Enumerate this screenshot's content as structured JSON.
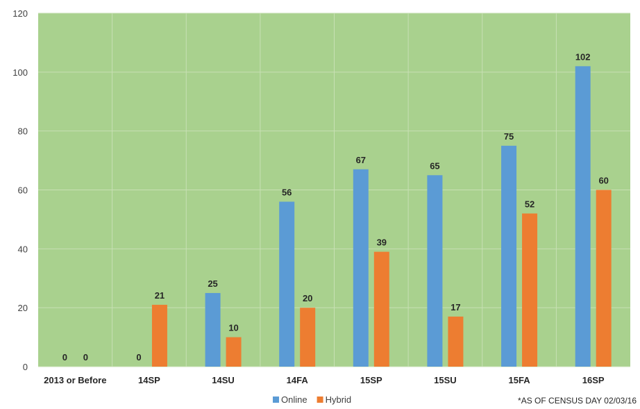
{
  "chart_data": {
    "type": "bar",
    "title": "",
    "xlabel": "",
    "ylabel": "",
    "categories": [
      "2013 or Before",
      "14SP",
      "14SU",
      "14FA",
      "15SP",
      "15SU",
      "15FA",
      "16SP"
    ],
    "series": [
      {
        "name": "Online",
        "color": "#5b9bd5",
        "values": [
          0,
          0,
          25,
          56,
          67,
          65,
          75,
          102
        ]
      },
      {
        "name": "Hybrid",
        "color": "#ed7d31",
        "values": [
          0,
          21,
          10,
          20,
          39,
          17,
          52,
          60
        ]
      }
    ],
    "ylim": [
      0,
      120
    ],
    "yticks": [
      0,
      20,
      40,
      60,
      80,
      100,
      120
    ],
    "grid": true,
    "plot_background": "#a9d18e",
    "legend_position": "bottom",
    "data_labels": true,
    "annotation": "*AS OF CENSUS DAY 02/03/16"
  }
}
